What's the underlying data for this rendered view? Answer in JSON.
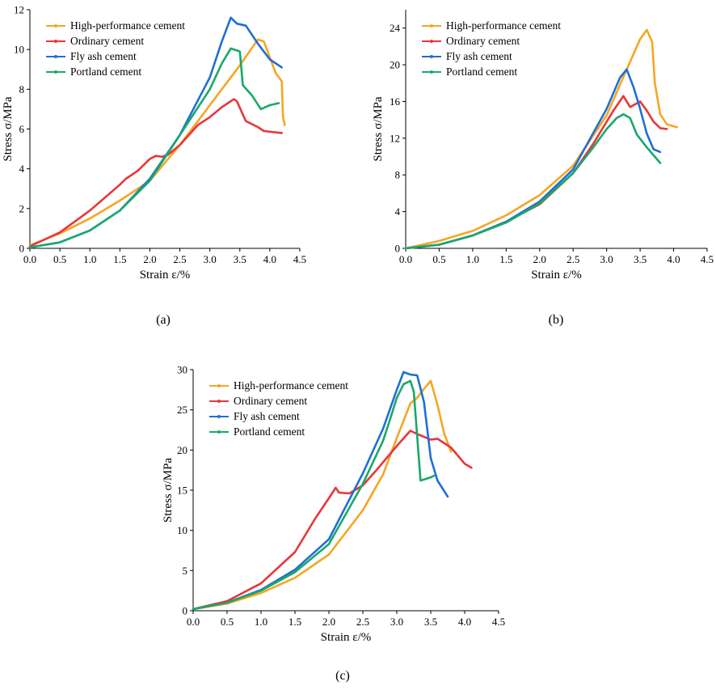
{
  "colors": {
    "High-performance cement": "#f5a623",
    "Ordinary cement": "#e8363b",
    "Fly ash cement": "#1f6fd6",
    "Portland cement": "#18a96a"
  },
  "chart_data": [
    {
      "type": "line",
      "caption": "(a)",
      "xlabel": "Strain ε/%",
      "ylabel": "Stress σ/MPa",
      "xlim": [
        0,
        4.5
      ],
      "ylim": [
        0,
        12
      ],
      "xticks": [
        0.0,
        0.5,
        1.0,
        1.5,
        2.0,
        2.5,
        3.0,
        3.5,
        4.0,
        4.5
      ],
      "yticks": [
        0,
        2,
        4,
        6,
        8,
        10,
        12
      ],
      "x_decimals": 1,
      "y_decimals": 0,
      "legend": "top-left",
      "series": [
        {
          "name": "High-performance cement",
          "points": [
            [
              0,
              0.15
            ],
            [
              0.5,
              0.75
            ],
            [
              1.0,
              1.5
            ],
            [
              1.5,
              2.4
            ],
            [
              2.0,
              3.4
            ],
            [
              2.5,
              5.2
            ],
            [
              3.0,
              7.2
            ],
            [
              3.5,
              9.2
            ],
            [
              3.8,
              10.5
            ],
            [
              3.9,
              10.4
            ],
            [
              4.0,
              9.6
            ],
            [
              4.1,
              8.8
            ],
            [
              4.2,
              8.4
            ],
            [
              4.22,
              6.6
            ],
            [
              4.25,
              6.2
            ]
          ]
        },
        {
          "name": "Ordinary cement",
          "points": [
            [
              0,
              0.1
            ],
            [
              0.5,
              0.8
            ],
            [
              1.0,
              1.9
            ],
            [
              1.5,
              3.2
            ],
            [
              1.6,
              3.5
            ],
            [
              1.8,
              3.9
            ],
            [
              2.0,
              4.5
            ],
            [
              2.1,
              4.65
            ],
            [
              2.2,
              4.6
            ],
            [
              2.3,
              4.7
            ],
            [
              2.5,
              5.2
            ],
            [
              2.8,
              6.2
            ],
            [
              3.0,
              6.6
            ],
            [
              3.2,
              7.1
            ],
            [
              3.4,
              7.5
            ],
            [
              3.45,
              7.4
            ],
            [
              3.6,
              6.4
            ],
            [
              3.8,
              6.1
            ],
            [
              3.9,
              5.9
            ],
            [
              4.2,
              5.8
            ]
          ]
        },
        {
          "name": "Fly ash cement",
          "points": [
            [
              0,
              0.05
            ],
            [
              0.5,
              0.3
            ],
            [
              1.0,
              0.9
            ],
            [
              1.5,
              1.9
            ],
            [
              2.0,
              3.5
            ],
            [
              2.5,
              5.7
            ],
            [
              3.0,
              8.6
            ],
            [
              3.2,
              10.4
            ],
            [
              3.35,
              11.6
            ],
            [
              3.45,
              11.3
            ],
            [
              3.6,
              11.2
            ],
            [
              3.8,
              10.3
            ],
            [
              4.0,
              9.5
            ],
            [
              4.2,
              9.1
            ]
          ]
        },
        {
          "name": "Portland cement",
          "points": [
            [
              0,
              0.05
            ],
            [
              0.5,
              0.3
            ],
            [
              1.0,
              0.9
            ],
            [
              1.5,
              1.9
            ],
            [
              2.0,
              3.4
            ],
            [
              2.5,
              5.7
            ],
            [
              3.0,
              8.0
            ],
            [
              3.2,
              9.3
            ],
            [
              3.35,
              10.05
            ],
            [
              3.5,
              9.9
            ],
            [
              3.55,
              8.2
            ],
            [
              3.7,
              7.7
            ],
            [
              3.85,
              7.0
            ],
            [
              4.0,
              7.2
            ],
            [
              4.15,
              7.3
            ]
          ]
        }
      ]
    },
    {
      "type": "line",
      "caption": "(b)",
      "xlabel": "Strain ε/%",
      "ylabel": "Stress σ/MPa",
      "xlim": [
        0,
        4.5
      ],
      "ylim": [
        0,
        26
      ],
      "xticks": [
        0.0,
        0.5,
        1.0,
        1.5,
        2.0,
        2.5,
        3.0,
        3.5,
        4.0,
        4.5
      ],
      "yticks": [
        0,
        4,
        8,
        12,
        16,
        20,
        24
      ],
      "x_decimals": 1,
      "y_decimals": 0,
      "legend": "top-left",
      "series": [
        {
          "name": "High-performance cement",
          "points": [
            [
              0,
              0
            ],
            [
              0.5,
              0.8
            ],
            [
              1.0,
              1.9
            ],
            [
              1.5,
              3.6
            ],
            [
              2.0,
              5.8
            ],
            [
              2.5,
              9.0
            ],
            [
              3.0,
              14.5
            ],
            [
              3.3,
              19.5
            ],
            [
              3.5,
              22.8
            ],
            [
              3.6,
              23.8
            ],
            [
              3.68,
              22.5
            ],
            [
              3.72,
              18.0
            ],
            [
              3.8,
              14.6
            ],
            [
              3.9,
              13.5
            ],
            [
              4.0,
              13.3
            ],
            [
              4.05,
              13.2
            ]
          ]
        },
        {
          "name": "Ordinary cement",
          "points": [
            [
              0,
              0
            ],
            [
              0.5,
              0.4
            ],
            [
              1.0,
              1.4
            ],
            [
              1.5,
              2.9
            ],
            [
              2.0,
              4.8
            ],
            [
              2.5,
              8.2
            ],
            [
              2.8,
              11.4
            ],
            [
              3.0,
              13.8
            ],
            [
              3.1,
              15.0
            ],
            [
              3.25,
              16.6
            ],
            [
              3.35,
              15.4
            ],
            [
              3.5,
              16.0
            ],
            [
              3.6,
              15.0
            ],
            [
              3.7,
              13.8
            ],
            [
              3.8,
              13.1
            ],
            [
              3.9,
              13.0
            ]
          ]
        },
        {
          "name": "Fly ash cement",
          "points": [
            [
              0,
              0
            ],
            [
              0.5,
              0.4
            ],
            [
              1.0,
              1.4
            ],
            [
              1.5,
              2.9
            ],
            [
              2.0,
              5.1
            ],
            [
              2.5,
              8.6
            ],
            [
              3.0,
              15.2
            ],
            [
              3.2,
              18.6
            ],
            [
              3.3,
              19.5
            ],
            [
              3.4,
              17.6
            ],
            [
              3.5,
              15.2
            ],
            [
              3.6,
              12.5
            ],
            [
              3.7,
              10.8
            ],
            [
              3.8,
              10.5
            ]
          ]
        },
        {
          "name": "Portland cement",
          "points": [
            [
              0,
              0
            ],
            [
              0.5,
              0.4
            ],
            [
              1.0,
              1.4
            ],
            [
              1.5,
              2.8
            ],
            [
              2.0,
              4.9
            ],
            [
              2.5,
              8.2
            ],
            [
              2.8,
              11.0
            ],
            [
              3.0,
              13.0
            ],
            [
              3.15,
              14.2
            ],
            [
              3.25,
              14.6
            ],
            [
              3.35,
              14.2
            ],
            [
              3.45,
              12.4
            ],
            [
              3.6,
              11.0
            ],
            [
              3.8,
              9.3
            ]
          ]
        }
      ]
    },
    {
      "type": "line",
      "caption": "(c)",
      "xlabel": "Strain ε/%",
      "ylabel": "Stress σ/MPa",
      "xlim": [
        0,
        4.5
      ],
      "ylim": [
        0,
        30
      ],
      "xticks": [
        0.0,
        0.5,
        1.0,
        1.5,
        2.0,
        2.5,
        3.0,
        3.5,
        4.0,
        4.5
      ],
      "yticks": [
        0,
        5,
        10,
        15,
        20,
        25,
        30
      ],
      "x_decimals": 1,
      "y_decimals": 0,
      "legend": "top-left",
      "series": [
        {
          "name": "High-performance cement",
          "points": [
            [
              0,
              0.2
            ],
            [
              0.5,
              0.9
            ],
            [
              1.0,
              2.2
            ],
            [
              1.5,
              4.1
            ],
            [
              2.0,
              7.0
            ],
            [
              2.5,
              12.5
            ],
            [
              2.8,
              17.0
            ],
            [
              3.0,
              21.5
            ],
            [
              3.2,
              25.8
            ],
            [
              3.3,
              26.5
            ],
            [
              3.4,
              27.6
            ],
            [
              3.5,
              28.6
            ],
            [
              3.6,
              25.6
            ],
            [
              3.7,
              22.0
            ],
            [
              3.8,
              19.8
            ]
          ]
        },
        {
          "name": "Ordinary cement",
          "points": [
            [
              0,
              0.2
            ],
            [
              0.5,
              1.2
            ],
            [
              1.0,
              3.4
            ],
            [
              1.5,
              7.3
            ],
            [
              1.8,
              11.5
            ],
            [
              2.0,
              14.0
            ],
            [
              2.1,
              15.3
            ],
            [
              2.15,
              14.7
            ],
            [
              2.3,
              14.6
            ],
            [
              2.5,
              15.6
            ],
            [
              2.7,
              17.5
            ],
            [
              3.0,
              20.5
            ],
            [
              3.2,
              22.4
            ],
            [
              3.3,
              22.0
            ],
            [
              3.5,
              21.3
            ],
            [
              3.6,
              21.4
            ],
            [
              3.8,
              20.3
            ],
            [
              4.0,
              18.3
            ],
            [
              4.1,
              17.8
            ]
          ]
        },
        {
          "name": "Fly ash cement",
          "points": [
            [
              0,
              0.2
            ],
            [
              0.5,
              1.0
            ],
            [
              1.0,
              2.6
            ],
            [
              1.5,
              5.1
            ],
            [
              2.0,
              8.9
            ],
            [
              2.5,
              17.1
            ],
            [
              2.8,
              22.7
            ],
            [
              3.0,
              27.5
            ],
            [
              3.1,
              29.7
            ],
            [
              3.2,
              29.4
            ],
            [
              3.3,
              29.3
            ],
            [
              3.4,
              26.0
            ],
            [
              3.5,
              19.0
            ],
            [
              3.6,
              16.2
            ],
            [
              3.75,
              14.2
            ]
          ]
        },
        {
          "name": "Portland cement",
          "points": [
            [
              0,
              0.2
            ],
            [
              0.5,
              1.0
            ],
            [
              1.0,
              2.5
            ],
            [
              1.5,
              4.8
            ],
            [
              2.0,
              8.3
            ],
            [
              2.5,
              15.8
            ],
            [
              2.8,
              21.2
            ],
            [
              2.9,
              23.8
            ],
            [
              3.0,
              26.5
            ],
            [
              3.1,
              28.2
            ],
            [
              3.2,
              28.6
            ],
            [
              3.25,
              27.3
            ],
            [
              3.35,
              16.2
            ],
            [
              3.5,
              16.6
            ],
            [
              3.55,
              16.8
            ]
          ]
        }
      ]
    }
  ]
}
